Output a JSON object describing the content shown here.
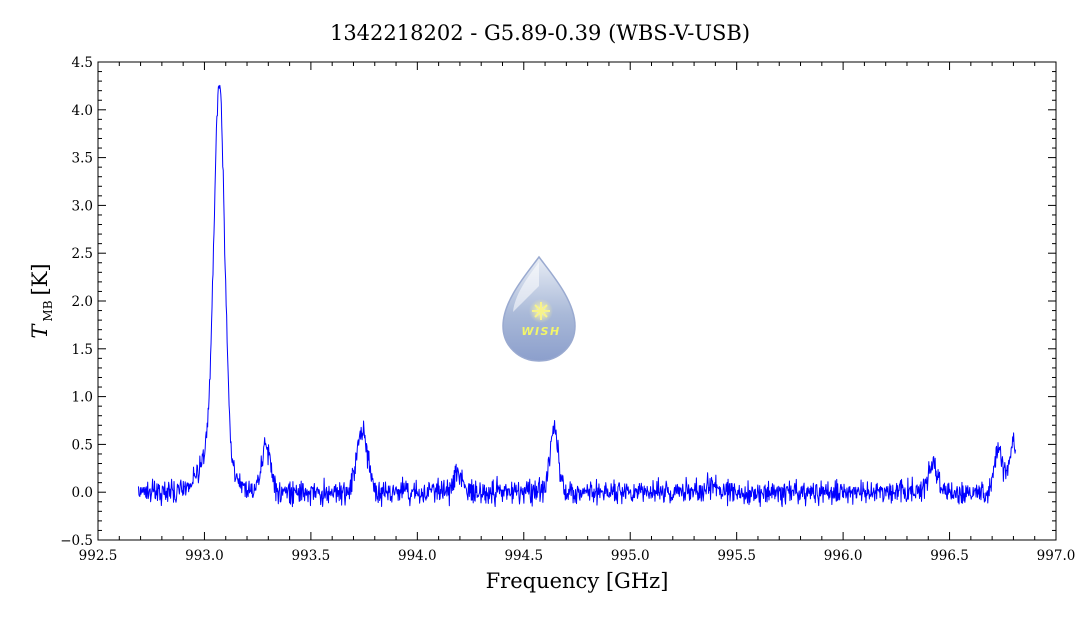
{
  "chart_data": {
    "type": "line",
    "title": "1342218202 - G5.89-0.39 (WBS-V-USB)",
    "xlabel": "Frequency [GHz]",
    "ylabel": {
      "symbol": "T",
      "subscript": "MB",
      "unit": "[K]"
    },
    "xlim": [
      992.5,
      997.0
    ],
    "ylim": [
      -0.5,
      4.5
    ],
    "x_ticks": [
      992.5,
      993.0,
      993.5,
      994.0,
      994.5,
      995.0,
      995.5,
      996.0,
      996.5,
      997.0
    ],
    "x_tick_labels": [
      "992.5",
      "993.0",
      "993.5",
      "994.0",
      "994.5",
      "995.0",
      "995.5",
      "996.0",
      "996.5",
      "997.0"
    ],
    "y_ticks": [
      -0.5,
      0.0,
      0.5,
      1.0,
      1.5,
      2.0,
      2.5,
      3.0,
      3.5,
      4.0,
      4.5
    ],
    "y_tick_labels": [
      "−0.5",
      "0.0",
      "0.5",
      "1.0",
      "1.5",
      "2.0",
      "2.5",
      "3.0",
      "3.5",
      "4.0",
      "4.5"
    ],
    "grid": false,
    "series_color": "#0000ff",
    "series": [
      {
        "x_range": [
          992.69,
          996.81
        ],
        "noise_rms": 0.06,
        "baseline": 0.0,
        "features": [
          {
            "center": 993.07,
            "peak": 3.8,
            "width": 0.025
          },
          {
            "center": 993.06,
            "peak": 0.5,
            "width": 0.07
          },
          {
            "center": 993.12,
            "peak": -0.15,
            "width": 0.03
          },
          {
            "center": 993.29,
            "peak": 0.5,
            "width": 0.02
          },
          {
            "center": 993.74,
            "peak": 0.65,
            "width": 0.025
          },
          {
            "center": 994.19,
            "peak": 0.2,
            "width": 0.02
          },
          {
            "center": 994.64,
            "peak": 0.65,
            "width": 0.02
          },
          {
            "center": 995.38,
            "peak": 0.08,
            "width": 0.02
          },
          {
            "center": 996.42,
            "peak": 0.3,
            "width": 0.02
          },
          {
            "center": 996.73,
            "peak": 0.45,
            "width": 0.02
          },
          {
            "center": 996.8,
            "peak": 0.5,
            "width": 0.02
          }
        ]
      }
    ]
  },
  "logo": {
    "text": "WISH",
    "icon": "water-drop-star-icon"
  }
}
